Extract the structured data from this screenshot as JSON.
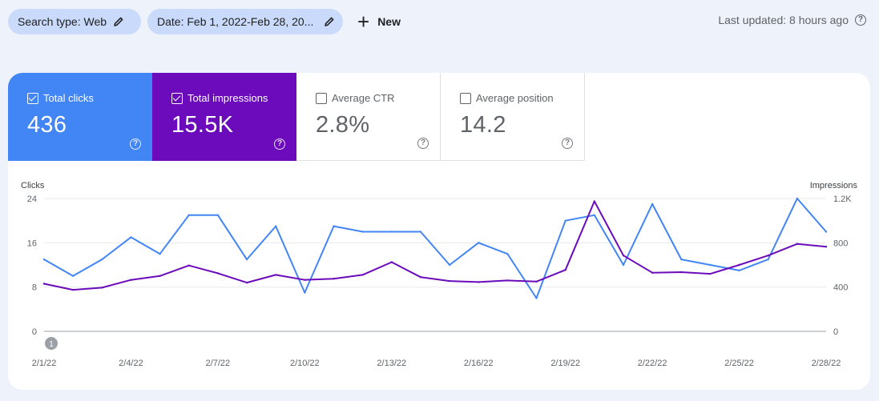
{
  "toolbar": {
    "search_type_chip": "Search type: Web",
    "date_chip": "Date: Feb 1, 2022-Feb 28, 20...",
    "new_button": "New",
    "last_updated": "Last updated: 8 hours ago"
  },
  "metrics": [
    {
      "label": "Total clicks",
      "value": "436",
      "checked": true,
      "color": "#4285f4"
    },
    {
      "label": "Total impressions",
      "value": "15.5K",
      "checked": true,
      "color": "#6b0bbb"
    },
    {
      "label": "Average CTR",
      "value": "2.8%",
      "checked": false
    },
    {
      "label": "Average position",
      "value": "14.2",
      "checked": false
    }
  ],
  "chart_data": {
    "type": "line",
    "y_left_label": "Clicks",
    "y_right_label": "Impressions",
    "y_left_ticks": [
      "24",
      "16",
      "8",
      "0"
    ],
    "y_right_ticks": [
      "1.2K",
      "800",
      "400",
      "0"
    ],
    "y_left_max": 24,
    "y_right_max": 1200,
    "x": [
      "2/1/22",
      "2/2/22",
      "2/3/22",
      "2/4/22",
      "2/5/22",
      "2/6/22",
      "2/7/22",
      "2/8/22",
      "2/9/22",
      "2/10/22",
      "2/11/22",
      "2/12/22",
      "2/13/22",
      "2/14/22",
      "2/15/22",
      "2/16/22",
      "2/17/22",
      "2/18/22",
      "2/19/22",
      "2/20/22",
      "2/21/22",
      "2/22/22",
      "2/23/22",
      "2/24/22",
      "2/25/22",
      "2/26/22",
      "2/27/22",
      "2/28/22"
    ],
    "x_tick_labels": [
      "2/1/22",
      "2/4/22",
      "2/7/22",
      "2/10/22",
      "2/13/22",
      "2/16/22",
      "2/19/22",
      "2/22/22",
      "2/25/22",
      "2/28/22"
    ],
    "series": [
      {
        "name": "Total clicks",
        "axis": "left",
        "color": "#4285f4",
        "values": [
          13,
          10,
          13,
          17,
          14,
          21,
          21,
          13,
          19,
          7,
          19,
          18,
          18,
          18,
          12,
          16,
          14,
          6,
          20,
          21,
          12,
          23,
          13,
          12,
          11,
          13,
          24,
          18
        ]
      },
      {
        "name": "Total impressions",
        "axis": "right",
        "color": "#6b0bbb",
        "values": [
          430,
          375,
          395,
          465,
          500,
          595,
          525,
          440,
          510,
          465,
          475,
          510,
          625,
          490,
          455,
          445,
          460,
          450,
          555,
          1175,
          685,
          530,
          535,
          520,
          600,
          685,
          790,
          765
        ]
      }
    ],
    "annotation_badge": "1"
  }
}
